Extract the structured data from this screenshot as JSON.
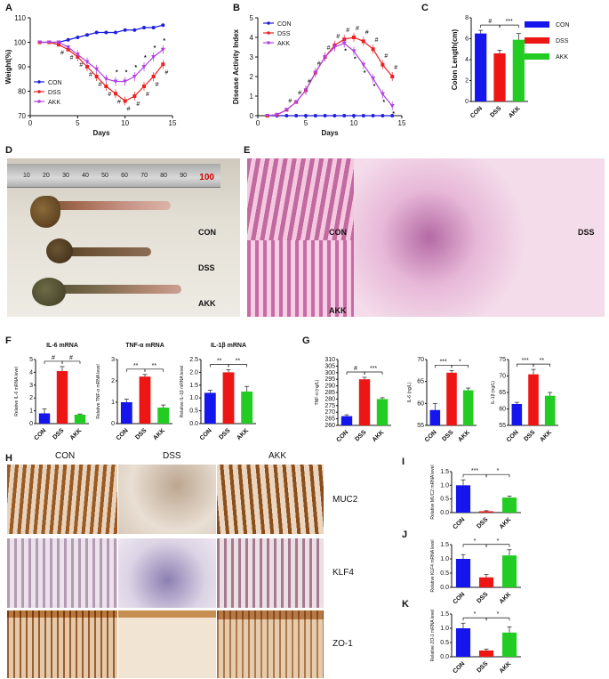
{
  "panels": {
    "A": "A",
    "B": "B",
    "C": "C",
    "D": "D",
    "E": "E",
    "F": "F",
    "G": "G",
    "H": "H",
    "I": "I",
    "J": "J",
    "K": "K"
  },
  "colors": {
    "con": "#1f1fe0",
    "dss": "#ee2020",
    "akk": "#b040e0",
    "con_bar": "#1515ee",
    "dss_bar": "#ee1515",
    "akk_bar": "#22cc22"
  },
  "legend_top": [
    {
      "label": "CON",
      "color": "#1515ee"
    },
    {
      "label": "DSS",
      "color": "#ee1515"
    },
    {
      "label": "AKK",
      "color": "#22cc22"
    }
  ],
  "photos": {
    "D": {
      "ruler_ticks": [
        "10",
        "20",
        "30",
        "40",
        "50",
        "60",
        "70",
        "80",
        "90",
        "100"
      ],
      "labels": [
        "CON",
        "DSS",
        "AKK"
      ]
    },
    "E": {
      "labels": [
        "CON",
        "DSS",
        "AKK"
      ]
    },
    "H": {
      "columns": [
        "CON",
        "DSS",
        "AKK"
      ],
      "rows": [
        "MUC2",
        "KLF4",
        "ZO-1"
      ]
    }
  },
  "chart_data": [
    {
      "id": "A",
      "type": "line",
      "xlabel": "Days",
      "ylabel": "Weight(%)",
      "xlim": [
        0,
        15
      ],
      "ylim": [
        70,
        110
      ],
      "xticks": [
        "0",
        "5",
        "10",
        "15"
      ],
      "yticks": [
        "70",
        "80",
        "90",
        "100",
        "110"
      ],
      "legend": "bottom-left",
      "x": [
        1,
        2,
        3,
        4,
        5,
        6,
        7,
        8,
        9,
        10,
        11,
        12,
        13,
        14
      ],
      "series": [
        {
          "name": "CON",
          "values": [
            100,
            100,
            100,
            101,
            102,
            103,
            104,
            104,
            104,
            105,
            105,
            106,
            106,
            107
          ]
        },
        {
          "name": "DSS",
          "values": [
            100,
            100,
            99,
            97,
            94,
            90,
            86,
            82,
            79,
            76,
            78,
            82,
            86,
            91
          ]
        },
        {
          "name": "AKK",
          "values": [
            100,
            100,
            100,
            98,
            95,
            92,
            89,
            85,
            84,
            84,
            86,
            90,
            94,
            97
          ]
        }
      ],
      "annotations": [
        "#",
        "*"
      ]
    },
    {
      "id": "B",
      "type": "line",
      "xlabel": "Days",
      "ylabel": "Disease Activity Index",
      "xlim": [
        0,
        15
      ],
      "ylim": [
        0,
        5
      ],
      "xticks": [
        "0",
        "5",
        "10",
        "15"
      ],
      "yticks": [
        "0",
        "1",
        "2",
        "3",
        "4",
        "5"
      ],
      "legend": "top-left",
      "x": [
        1,
        2,
        3,
        4,
        5,
        6,
        7,
        8,
        9,
        10,
        11,
        12,
        13,
        14
      ],
      "series": [
        {
          "name": "CON",
          "values": [
            0,
            0,
            0,
            0,
            0,
            0,
            0,
            0,
            0,
            0,
            0,
            0,
            0,
            0
          ]
        },
        {
          "name": "DSS",
          "values": [
            0,
            0.05,
            0.3,
            0.7,
            1.3,
            2.2,
            3,
            3.6,
            3.9,
            4,
            3.8,
            3.4,
            2.6,
            2
          ]
        },
        {
          "name": "AKK",
          "values": [
            0,
            0.05,
            0.3,
            0.7,
            1.3,
            2.2,
            3,
            3.5,
            3.7,
            3.3,
            2.6,
            1.9,
            1.1,
            0.5
          ]
        }
      ],
      "annotations": [
        "#",
        "*"
      ]
    },
    {
      "id": "C",
      "type": "bar",
      "ylabel": "Colon Length(cm)",
      "ylim": [
        0,
        8
      ],
      "yticks": [
        "0",
        "2",
        "4",
        "6",
        "8"
      ],
      "categories": [
        "CON",
        "DSS",
        "AKK"
      ],
      "values": [
        6.5,
        4.6,
        5.9
      ],
      "errors": [
        0.3,
        0.3,
        0.6
      ],
      "sig": [
        "#",
        "***"
      ]
    },
    {
      "id": "F1",
      "type": "bar",
      "title": "IL-6 mRNA",
      "ylabel": "Relative IL-6 mRNA level",
      "ylim": [
        0,
        5
      ],
      "yticks": [
        "0",
        "1",
        "2",
        "3",
        "4",
        "5"
      ],
      "categories": [
        "CON",
        "DSS",
        "AKK"
      ],
      "values": [
        0.8,
        4.1,
        0.7
      ],
      "errors": [
        0.35,
        0.35,
        0.05
      ],
      "sig": [
        "#",
        "#"
      ]
    },
    {
      "id": "F2",
      "type": "bar",
      "title": "TNF-α mRNA",
      "ylabel": "Relative TNF-α mRNA level",
      "ylim": [
        0,
        3
      ],
      "yticks": [
        "0",
        "1",
        "2",
        "3"
      ],
      "categories": [
        "CON",
        "DSS",
        "AKK"
      ],
      "values": [
        1.0,
        2.2,
        0.75
      ],
      "errors": [
        0.15,
        0.1,
        0.12
      ],
      "sig": [
        "**",
        "**"
      ]
    },
    {
      "id": "F3",
      "type": "bar",
      "title": "IL-1β mRNA",
      "ylabel": "Relative IL-1β mRNA level",
      "ylim": [
        0,
        2.5
      ],
      "yticks": [
        "0.0",
        "0.5",
        "1.0",
        "1.5",
        "2.0",
        "2.5"
      ],
      "categories": [
        "CON",
        "DSS",
        "AKK"
      ],
      "values": [
        1.2,
        2.0,
        1.25
      ],
      "errors": [
        0.1,
        0.1,
        0.2
      ],
      "sig": [
        "**",
        "**"
      ]
    },
    {
      "id": "G1",
      "type": "bar",
      "ylabel": "TNF-α (ng/L)",
      "ylim": [
        260,
        310
      ],
      "yticks": [
        "260",
        "265",
        "270",
        "275",
        "280",
        "285",
        "290",
        "295",
        "300",
        "305",
        "310"
      ],
      "categories": [
        "CON",
        "DSS",
        "AKK"
      ],
      "values": [
        267,
        295,
        280
      ],
      "errors": [
        1,
        1.5,
        1
      ],
      "sig": [
        "#",
        "***"
      ]
    },
    {
      "id": "G2",
      "type": "bar",
      "ylabel": "IL-6 (ng/L)",
      "ylim": [
        55,
        70
      ],
      "yticks": [
        "55",
        "60",
        "65",
        "70"
      ],
      "categories": [
        "CON",
        "DSS",
        "AKK"
      ],
      "values": [
        58.5,
        67,
        63
      ],
      "errors": [
        1.5,
        0.5,
        0.5
      ],
      "sig": [
        "***",
        "*"
      ]
    },
    {
      "id": "G3",
      "type": "bar",
      "ylabel": "IL-1β (ng/L)",
      "ylim": [
        55,
        75
      ],
      "yticks": [
        "55",
        "60",
        "65",
        "70",
        "75"
      ],
      "categories": [
        "CON",
        "DSS",
        "AKK"
      ],
      "values": [
        61.5,
        70.5,
        64
      ],
      "errors": [
        0.5,
        1.5,
        1
      ],
      "sig": [
        "***",
        "**"
      ]
    },
    {
      "id": "I",
      "type": "bar",
      "ylabel": "Relative MUC2 mRNA level",
      "ylim": [
        0,
        1.5
      ],
      "yticks": [
        "0.0",
        "0.5",
        "1.0",
        "1.5"
      ],
      "categories": [
        "CON",
        "DSS",
        "AKK"
      ],
      "values": [
        1.0,
        0.05,
        0.55
      ],
      "errors": [
        0.2,
        0.02,
        0.05
      ],
      "sig": [
        "***",
        "*"
      ]
    },
    {
      "id": "J",
      "type": "bar",
      "ylabel": "Relative KLF4 mRNA level",
      "ylim": [
        0,
        1.5
      ],
      "yticks": [
        "0.0",
        "0.5",
        "1.0",
        "1.5"
      ],
      "categories": [
        "CON",
        "DSS",
        "AKK"
      ],
      "values": [
        1.0,
        0.35,
        1.12
      ],
      "errors": [
        0.15,
        0.1,
        0.2
      ],
      "sig": [
        "*",
        "*"
      ]
    },
    {
      "id": "K",
      "type": "bar",
      "ylabel": "Relative ZO-1 mRNA level",
      "ylim": [
        0,
        1.5
      ],
      "yticks": [
        "0.0",
        "0.5",
        "1.0",
        "1.5"
      ],
      "categories": [
        "CON",
        "DSS",
        "AKK"
      ],
      "values": [
        1.0,
        0.22,
        0.85
      ],
      "errors": [
        0.18,
        0.05,
        0.2
      ],
      "sig": [
        "*",
        "*"
      ]
    }
  ]
}
